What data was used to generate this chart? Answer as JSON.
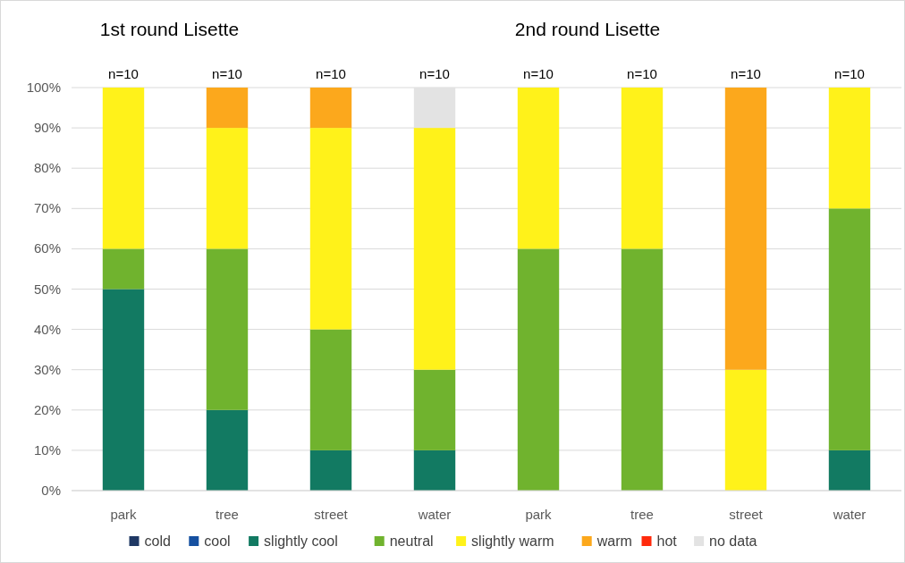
{
  "chart_data": {
    "type": "bar",
    "stacked": true,
    "categories": [
      "park",
      "tree",
      "street",
      "water",
      "park",
      "tree",
      "street",
      "water"
    ],
    "series": [
      {
        "name": "cold",
        "color": "#1f3864",
        "values": [
          0,
          0,
          0,
          0,
          0,
          0,
          0,
          0
        ]
      },
      {
        "name": "cool",
        "color": "#1550a0",
        "values": [
          0,
          0,
          0,
          0,
          0,
          0,
          0,
          0
        ]
      },
      {
        "name": "slightly cool",
        "color": "#127a62",
        "values": [
          50,
          20,
          10,
          10,
          0,
          0,
          0,
          10
        ]
      },
      {
        "name": "neutral",
        "color": "#70b32e",
        "values": [
          10,
          40,
          30,
          20,
          60,
          60,
          0,
          60
        ]
      },
      {
        "name": "slightly warm",
        "color": "#fff21a",
        "values": [
          40,
          30,
          50,
          60,
          40,
          40,
          30,
          30
        ]
      },
      {
        "name": "warm",
        "color": "#fca81c",
        "values": [
          0,
          10,
          10,
          0,
          0,
          0,
          70,
          0
        ]
      },
      {
        "name": "hot",
        "color": "#ff2a0c",
        "values": [
          0,
          0,
          0,
          0,
          0,
          0,
          0,
          0
        ]
      },
      {
        "name": "no data",
        "color": "#e3e3e3",
        "values": [
          0,
          0,
          0,
          10,
          0,
          0,
          0,
          0
        ]
      }
    ],
    "ylim": [
      0,
      100
    ],
    "yticks": [
      {
        "value": 0,
        "label": "0%"
      },
      {
        "value": 10,
        "label": "10%"
      },
      {
        "value": 20,
        "label": "20%"
      },
      {
        "value": 30,
        "label": "30%"
      },
      {
        "value": 40,
        "label": "40%"
      },
      {
        "value": 50,
        "label": "50%"
      },
      {
        "value": 60,
        "label": "60%"
      },
      {
        "value": 70,
        "label": "70%"
      },
      {
        "value": 80,
        "label": "80%"
      },
      {
        "value": 90,
        "label": "90%"
      },
      {
        "value": 100,
        "label": "100%"
      }
    ],
    "grid": "y",
    "legend": "bottom",
    "annotations": [
      "1st round Lisette",
      "2nd round Lisette",
      "n=10",
      "n=10",
      "n=10",
      "n=10",
      "n=10",
      "n=10",
      "n=10",
      "n=10"
    ]
  }
}
